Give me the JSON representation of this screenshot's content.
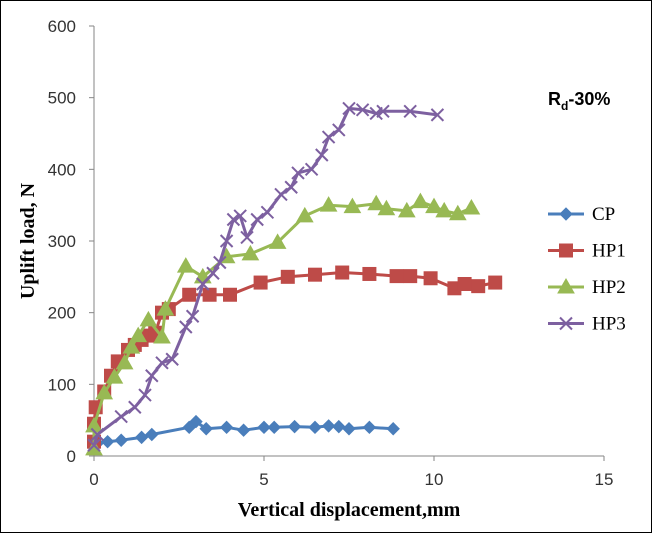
{
  "chart_data": {
    "type": "line",
    "xlabel": "Vertical displacement,mm",
    "ylabel": "Uplift load, N",
    "xlim": [
      0,
      15
    ],
    "ylim": [
      0,
      600
    ],
    "x_ticks": [
      "0",
      "5",
      "10",
      "15"
    ],
    "y_ticks": [
      "0",
      "100",
      "200",
      "300",
      "400",
      "500",
      "600"
    ],
    "grid": false,
    "legend_position": "right",
    "annotation": {
      "main": "R",
      "sub": "d",
      "rest": "-30%"
    },
    "series": [
      {
        "name": "CP",
        "color": "#4a7ebb",
        "marker": "diamond",
        "points": [
          [
            0,
            12
          ],
          [
            0.1,
            18
          ],
          [
            0.4,
            20
          ],
          [
            0.8,
            22
          ],
          [
            1.4,
            26
          ],
          [
            1.7,
            30
          ],
          [
            2.8,
            40
          ],
          [
            3.0,
            48
          ],
          [
            3.3,
            38
          ],
          [
            3.9,
            40
          ],
          [
            4.4,
            36
          ],
          [
            5.0,
            40
          ],
          [
            5.3,
            40
          ],
          [
            5.9,
            41
          ],
          [
            6.5,
            40
          ],
          [
            6.9,
            42
          ],
          [
            7.2,
            41
          ],
          [
            7.5,
            38
          ],
          [
            8.1,
            40
          ],
          [
            8.8,
            38
          ]
        ]
      },
      {
        "name": "HP1",
        "color": "#be4b48",
        "marker": "square",
        "points": [
          [
            0,
            20
          ],
          [
            0,
            45
          ],
          [
            0.05,
            68
          ],
          [
            0.3,
            90
          ],
          [
            0.5,
            112
          ],
          [
            0.7,
            132
          ],
          [
            1.0,
            148
          ],
          [
            1.2,
            155
          ],
          [
            1.4,
            162
          ],
          [
            1.6,
            168
          ],
          [
            1.8,
            172
          ],
          [
            2.0,
            200
          ],
          [
            2.2,
            205
          ],
          [
            2.8,
            225
          ],
          [
            3.4,
            225
          ],
          [
            4.0,
            225
          ],
          [
            4.9,
            242
          ],
          [
            5.7,
            250
          ],
          [
            6.5,
            253
          ],
          [
            7.3,
            256
          ],
          [
            8.1,
            254
          ],
          [
            8.9,
            251
          ],
          [
            9.3,
            251
          ],
          [
            9.9,
            248
          ],
          [
            10.6,
            234
          ],
          [
            10.9,
            240
          ],
          [
            11.3,
            237
          ],
          [
            11.8,
            242
          ]
        ]
      },
      {
        "name": "HP2",
        "color": "#98b954",
        "marker": "triangle",
        "points": [
          [
            0,
            10
          ],
          [
            0,
            42
          ],
          [
            0.3,
            88
          ],
          [
            0.6,
            110
          ],
          [
            0.9,
            130
          ],
          [
            1.1,
            152
          ],
          [
            1.3,
            168
          ],
          [
            1.6,
            190
          ],
          [
            2.0,
            166
          ],
          [
            2.1,
            205
          ],
          [
            2.7,
            265
          ],
          [
            3.2,
            250
          ],
          [
            3.9,
            278
          ],
          [
            4.6,
            282
          ],
          [
            5.4,
            298
          ],
          [
            6.2,
            335
          ],
          [
            6.9,
            350
          ],
          [
            7.6,
            348
          ],
          [
            8.3,
            352
          ],
          [
            8.6,
            345
          ],
          [
            9.2,
            342
          ],
          [
            9.6,
            355
          ],
          [
            10.0,
            348
          ],
          [
            10.3,
            342
          ],
          [
            10.7,
            338
          ],
          [
            11.1,
            346
          ]
        ]
      },
      {
        "name": "HP3",
        "color": "#7d60a0",
        "marker": "x",
        "points": [
          [
            0,
            15
          ],
          [
            0.1,
            30
          ],
          [
            0.8,
            55
          ],
          [
            1.2,
            68
          ],
          [
            1.5,
            85
          ],
          [
            1.7,
            112
          ],
          [
            2.0,
            130
          ],
          [
            2.3,
            135
          ],
          [
            2.7,
            180
          ],
          [
            2.9,
            195
          ],
          [
            3.2,
            240
          ],
          [
            3.5,
            255
          ],
          [
            3.7,
            270
          ],
          [
            3.9,
            300
          ],
          [
            4.1,
            330
          ],
          [
            4.3,
            335
          ],
          [
            4.5,
            305
          ],
          [
            4.8,
            330
          ],
          [
            5.1,
            340
          ],
          [
            5.5,
            365
          ],
          [
            5.8,
            375
          ],
          [
            6.0,
            395
          ],
          [
            6.4,
            400
          ],
          [
            6.7,
            420
          ],
          [
            6.9,
            445
          ],
          [
            7.2,
            455
          ],
          [
            7.5,
            485
          ],
          [
            7.9,
            483
          ],
          [
            8.3,
            478
          ],
          [
            8.5,
            481
          ],
          [
            9.3,
            481
          ],
          [
            10.1,
            476
          ]
        ]
      }
    ]
  }
}
